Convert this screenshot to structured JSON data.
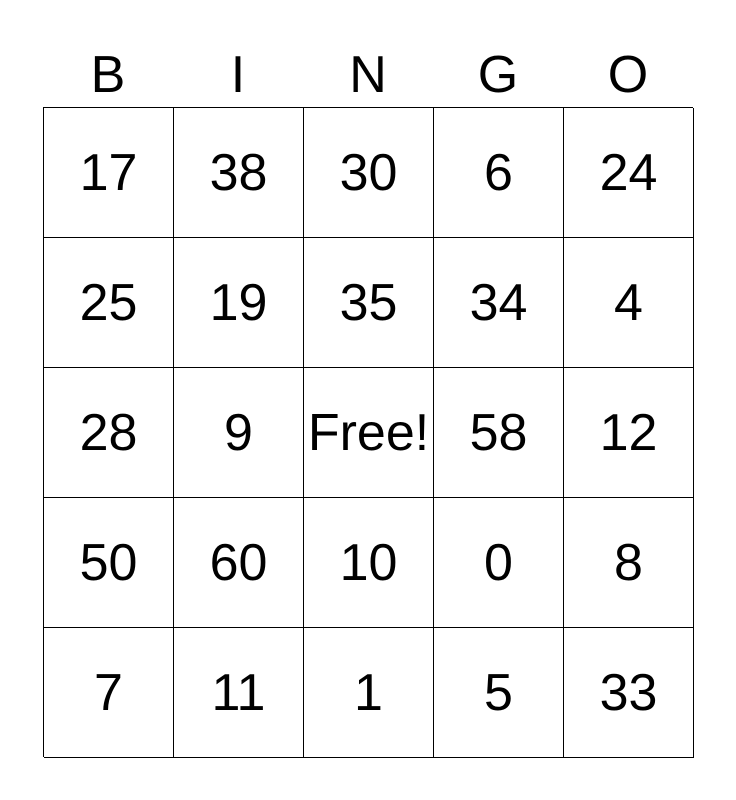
{
  "header": [
    "B",
    "I",
    "N",
    "G",
    "O"
  ],
  "rows": [
    [
      "17",
      "38",
      "30",
      "6",
      "24"
    ],
    [
      "25",
      "19",
      "35",
      "34",
      "4"
    ],
    [
      "28",
      "9",
      "Free!",
      "58",
      "12"
    ],
    [
      "50",
      "60",
      "10",
      "0",
      "8"
    ],
    [
      "7",
      "11",
      "1",
      "5",
      "33"
    ]
  ]
}
